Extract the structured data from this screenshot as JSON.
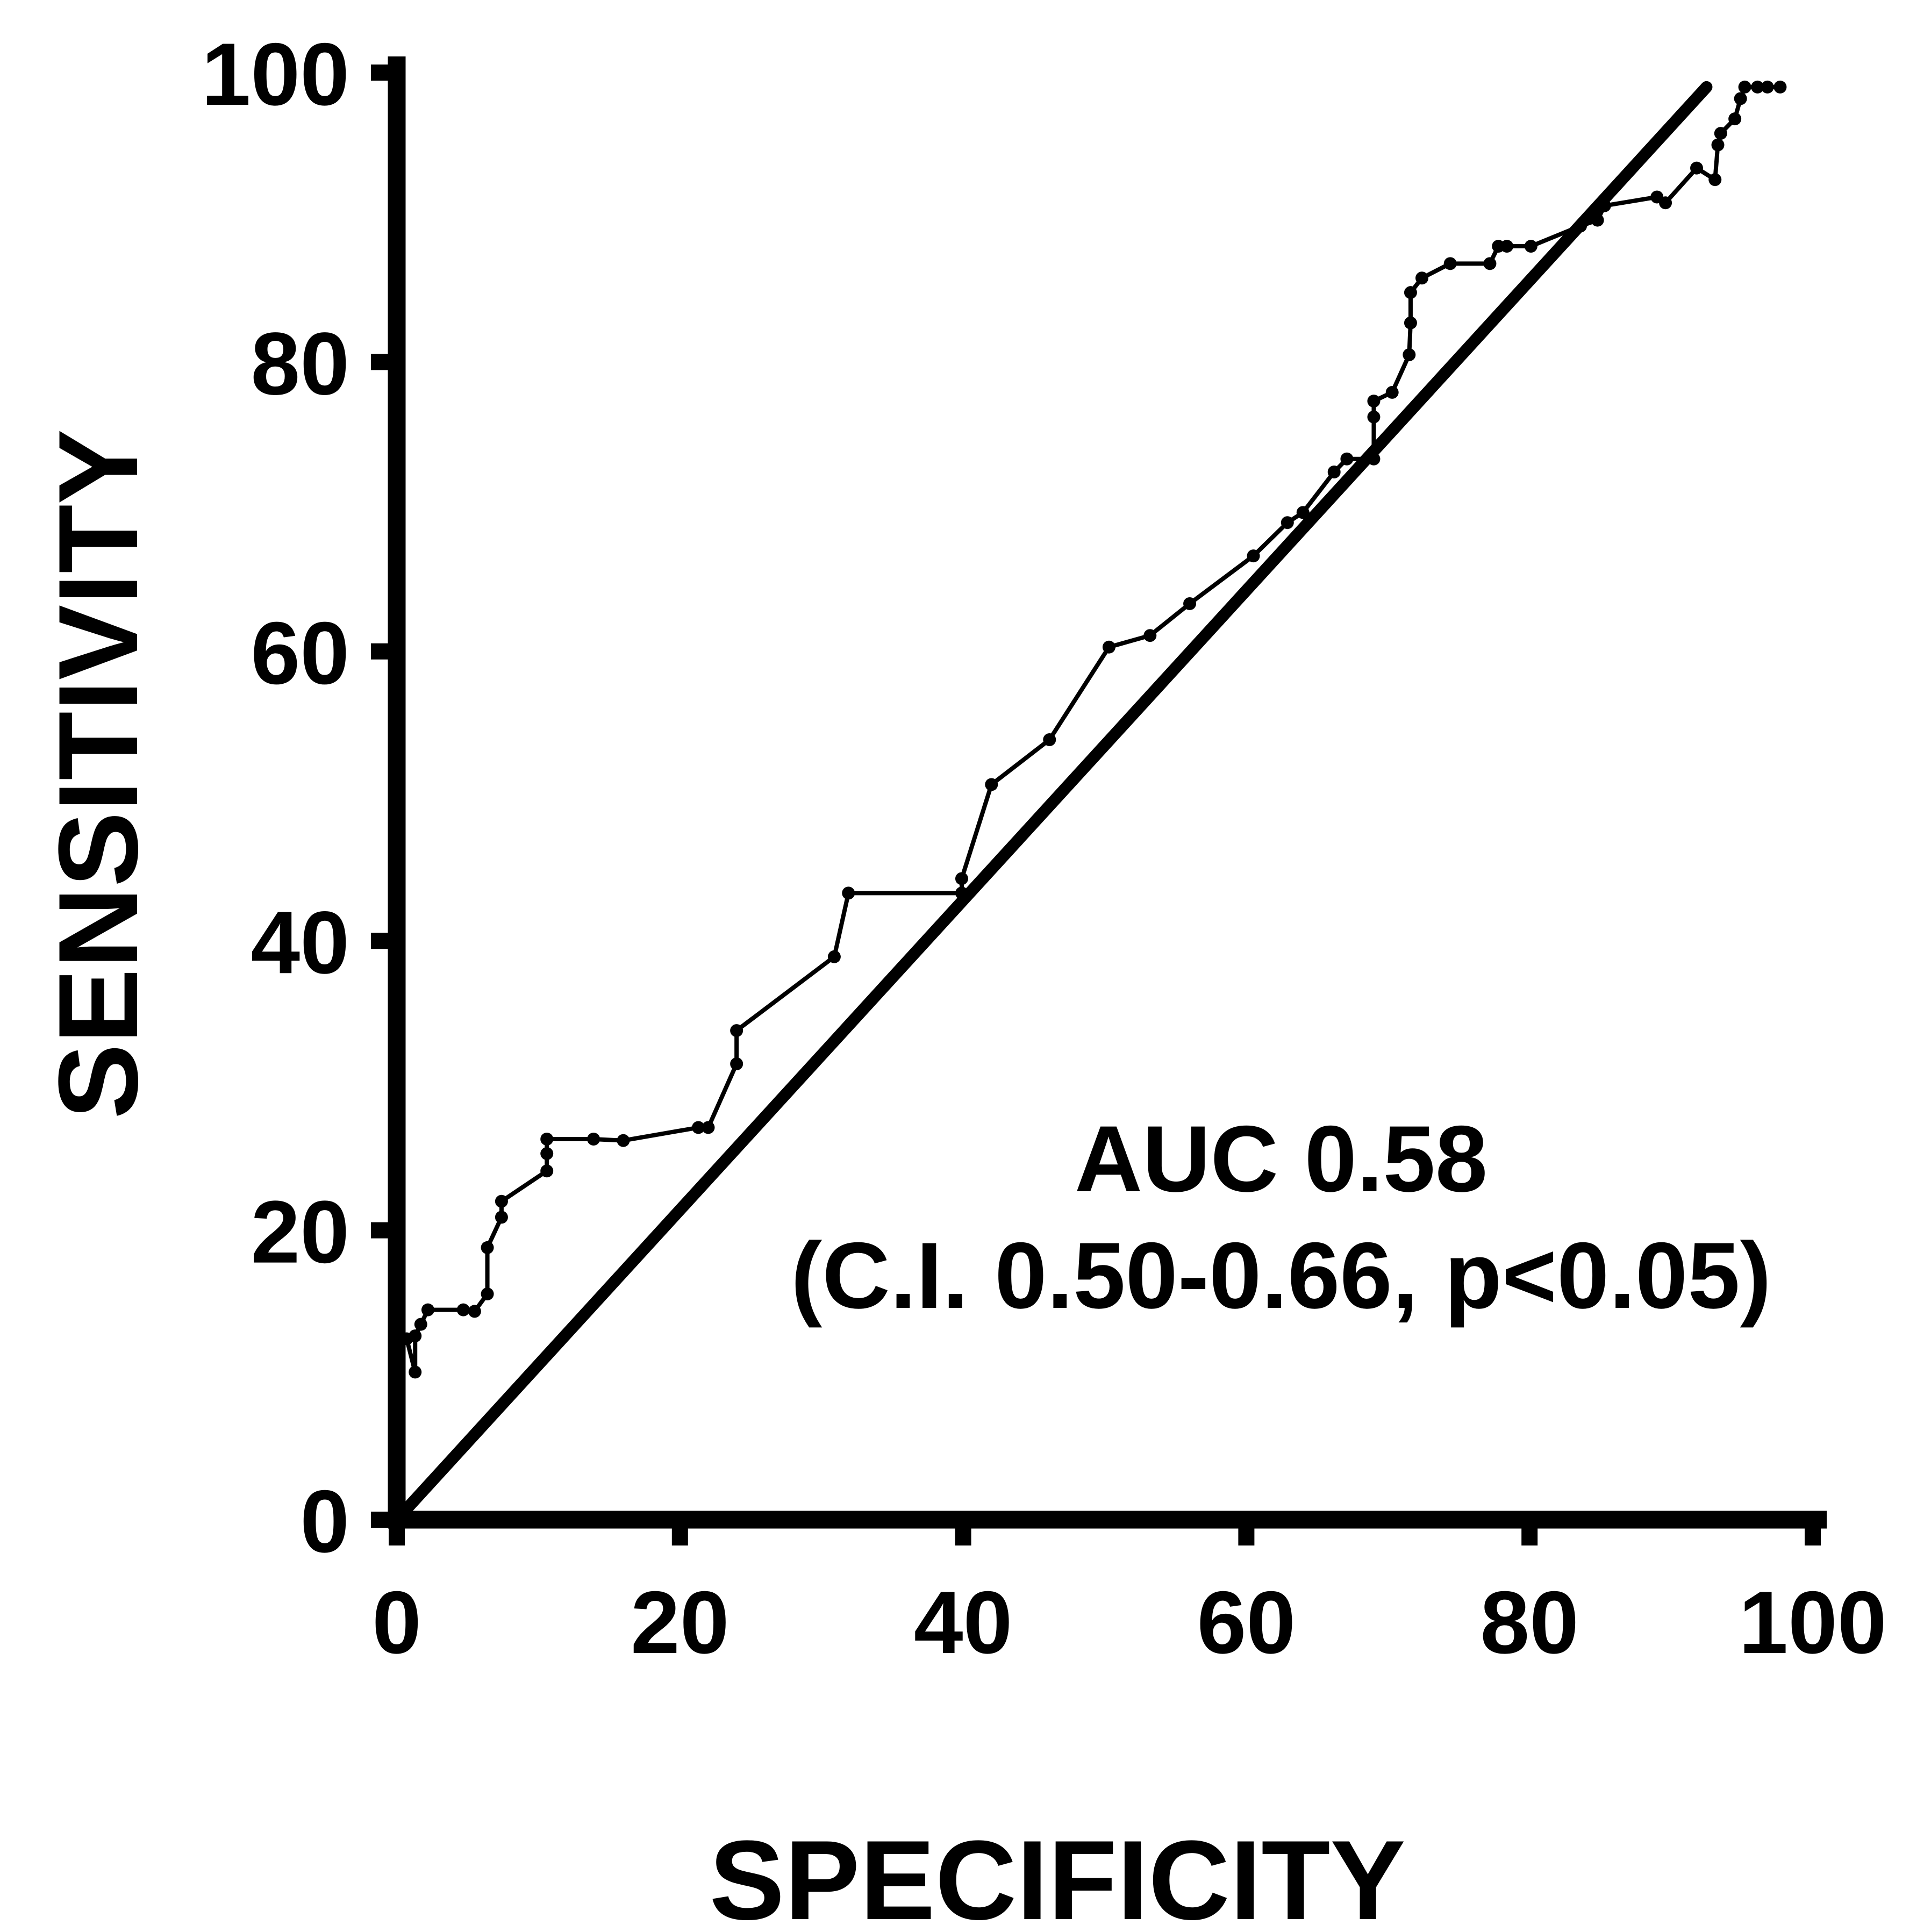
{
  "chart_data": {
    "type": "line",
    "xlabel": "SPECIFICITY",
    "ylabel": "SENSITIVITY",
    "xlim": [
      0,
      100
    ],
    "ylim": [
      0,
      100
    ],
    "x_ticks": [
      "0",
      "20",
      "40",
      "60",
      "80",
      "100"
    ],
    "y_ticks": [
      "0",
      "20",
      "40",
      "60",
      "80",
      "100"
    ],
    "grid": false,
    "annotations": [
      "AUC 0.58",
      "(C.I. 0.50-0.66, p<0.05)"
    ],
    "reference_line": {
      "x": [
        0,
        92.5
      ],
      "y": [
        0,
        99
      ]
    },
    "series": [
      {
        "x": [
          0.7,
          1.3,
          1.3,
          1.7,
          2.2,
          4.7,
          5.5,
          6.4,
          6.4,
          7.4,
          7.4,
          10.6,
          10.6,
          10.6,
          13.9,
          16.0,
          21.3,
          22.0,
          24.0,
          24.0,
          30.9,
          31.9,
          39.9,
          39.9,
          42.0,
          46.1,
          50.3,
          53.2,
          56.0,
          60.5,
          62.9,
          64.0,
          66.2,
          67.1,
          69.0,
          69.0,
          69.0,
          70.3,
          71.5,
          71.6,
          71.6,
          72.4,
          74.4,
          77.2,
          77.8,
          78.4,
          80.1,
          83.6,
          84.8,
          85.3,
          89.0,
          89.6,
          91.8,
          93.1,
          93.3,
          93.5,
          94.5,
          94.9,
          95.2,
          96.1,
          96.8,
          97.7
        ],
        "y": [
          12.5,
          10.2,
          12.7,
          13.5,
          14.5,
          14.5,
          14.4,
          15.6,
          18.8,
          20.9,
          22.0,
          24.1,
          25.3,
          26.3,
          26.3,
          26.2,
          27.1,
          27.1,
          31.5,
          33.8,
          38.9,
          43.3,
          43.3,
          44.3,
          50.8,
          53.9,
          60.3,
          61.1,
          63.3,
          66.6,
          68.9,
          69.6,
          72.4,
          73.3,
          73.3,
          76.2,
          77.3,
          77.9,
          80.5,
          82.7,
          84.8,
          85.8,
          86.8,
          86.8,
          88.0,
          88.0,
          88.0,
          89.4,
          89.8,
          90.8,
          91.4,
          91.0,
          93.4,
          92.6,
          95.0,
          95.8,
          96.8,
          98.2,
          99.0,
          99.0,
          99.0,
          99.0
        ]
      }
    ]
  }
}
